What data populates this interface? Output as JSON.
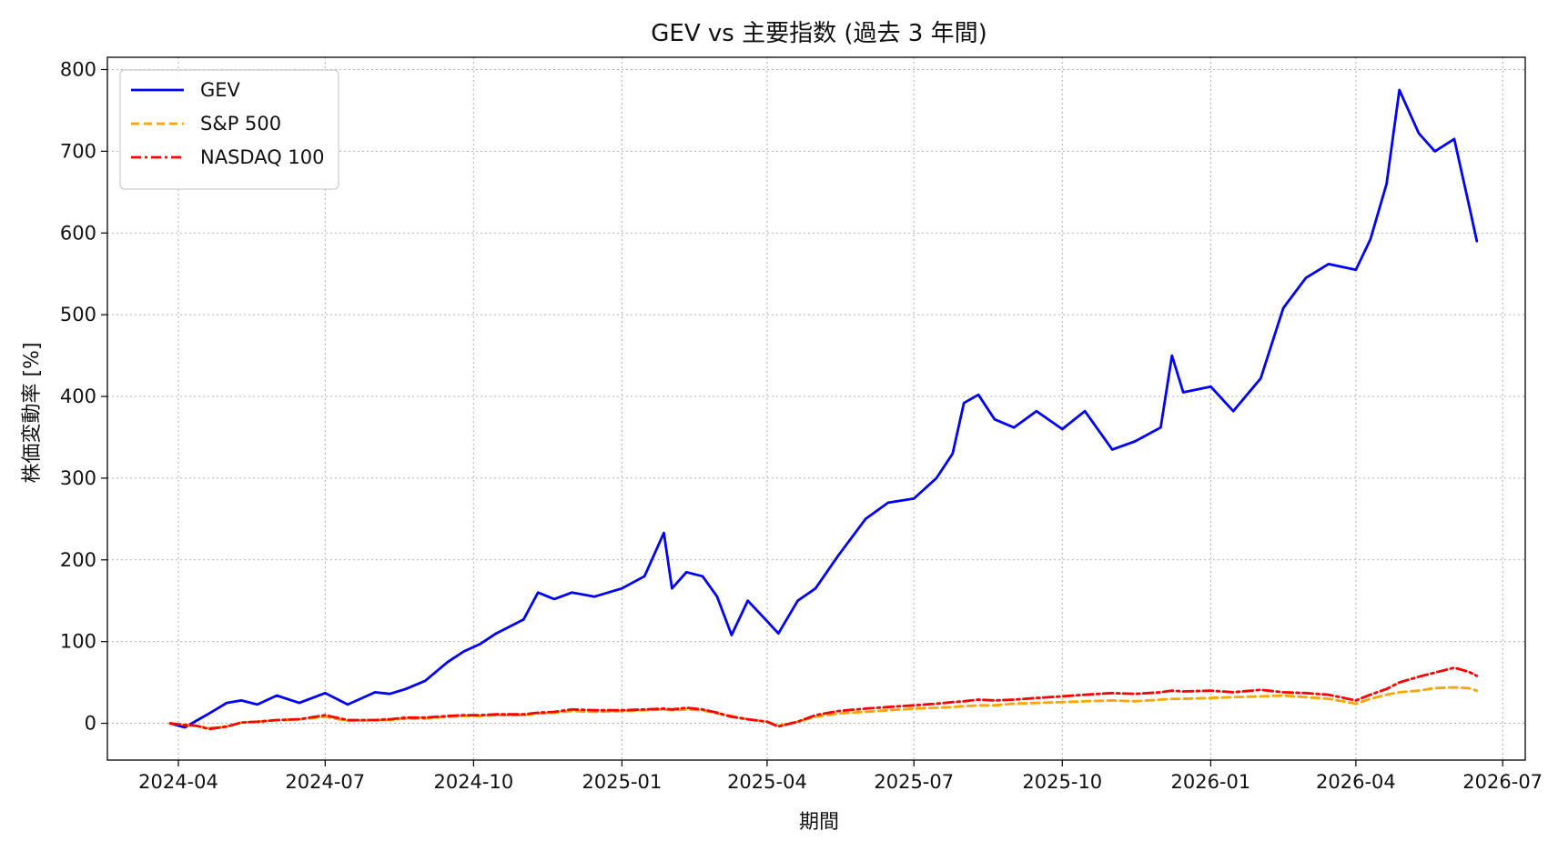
{
  "chart_data": {
    "type": "line",
    "title": "GEV vs 主要指数 (過去 3 年間)",
    "xlabel": "期間",
    "ylabel": "株価変動率 [%]",
    "x_tick_labels": [
      "2024-04",
      "2024-07",
      "2024-10",
      "2025-01",
      "2025-04",
      "2025-07",
      "2025-10",
      "2026-01",
      "2026-04",
      "2026-07"
    ],
    "ylim": [
      -45,
      815
    ],
    "xlim": [
      "2024-02-17",
      "2026-07-15"
    ],
    "y_ticks": [
      0,
      100,
      200,
      300,
      400,
      500,
      600,
      700,
      800
    ],
    "grid": true,
    "legend_position": "top-left",
    "x": [
      "2024-03-27",
      "2024-04-05",
      "2024-04-12",
      "2024-04-20",
      "2024-05-01",
      "2024-05-10",
      "2024-05-20",
      "2024-06-01",
      "2024-06-15",
      "2024-07-01",
      "2024-07-15",
      "2024-08-01",
      "2024-08-10",
      "2024-08-20",
      "2024-09-01",
      "2024-09-15",
      "2024-09-25",
      "2024-10-05",
      "2024-10-15",
      "2024-11-01",
      "2024-11-10",
      "2024-11-20",
      "2024-12-01",
      "2024-12-15",
      "2025-01-01",
      "2025-01-15",
      "2025-01-27",
      "2025-02-01",
      "2025-02-10",
      "2025-02-20",
      "2025-03-01",
      "2025-03-10",
      "2025-03-20",
      "2025-04-01",
      "2025-04-08",
      "2025-04-20",
      "2025-05-01",
      "2025-05-15",
      "2025-06-01",
      "2025-06-15",
      "2025-07-01",
      "2025-07-15",
      "2025-07-25",
      "2025-08-01",
      "2025-08-10",
      "2025-08-20",
      "2025-09-01",
      "2025-09-15",
      "2025-10-01",
      "2025-10-15",
      "2025-11-01",
      "2025-11-15",
      "2025-12-01",
      "2025-12-08",
      "2025-12-15",
      "2026-01-01",
      "2026-01-15",
      "2026-02-01",
      "2026-02-15",
      "2026-03-01",
      "2026-03-15",
      "2026-04-01",
      "2026-04-10",
      "2026-04-20",
      "2026-04-28",
      "2026-05-10",
      "2026-05-20",
      "2026-06-01",
      "2026-06-10",
      "2026-06-15"
    ],
    "series": [
      {
        "name": "GEV",
        "color": "#0000ff",
        "style": "solid",
        "values": [
          0,
          -5,
          3,
          12,
          25,
          28,
          23,
          34,
          25,
          37,
          23,
          38,
          36,
          42,
          52,
          75,
          88,
          97,
          110,
          127,
          160,
          152,
          160,
          155,
          165,
          180,
          233,
          165,
          185,
          180,
          155,
          108,
          150,
          125,
          110,
          150,
          165,
          205,
          250,
          270,
          275,
          300,
          330,
          392,
          402,
          372,
          362,
          382,
          360,
          382,
          335,
          345,
          362,
          450,
          405,
          412,
          382,
          422,
          508,
          545,
          562,
          555,
          592,
          660,
          775,
          722,
          700,
          715,
          635,
          590
        ]
      },
      {
        "name": "S&P 500",
        "color": "#ffa500",
        "style": "dashed",
        "values": [
          0,
          -2,
          -3,
          -6,
          -4,
          1,
          2,
          4,
          5,
          8,
          3,
          4,
          4,
          6,
          6,
          8,
          9,
          9,
          10,
          10,
          12,
          13,
          15,
          14,
          15,
          16,
          17,
          16,
          17,
          16,
          12,
          9,
          5,
          2,
          -3,
          2,
          8,
          12,
          14,
          16,
          18,
          19,
          20,
          21,
          22,
          22,
          24,
          25,
          26,
          27,
          28,
          27,
          29,
          30,
          30,
          31,
          32,
          33,
          34,
          32,
          30,
          24,
          30,
          35,
          38,
          40,
          43,
          44,
          43,
          40
        ]
      },
      {
        "name": "NASDAQ 100",
        "color": "#ff0000",
        "style": "dashdot",
        "values": [
          0,
          -2,
          -3,
          -7,
          -4,
          1,
          2,
          4,
          5,
          10,
          4,
          4,
          5,
          7,
          7,
          9,
          10,
          10,
          11,
          11,
          13,
          14,
          17,
          16,
          16,
          17,
          18,
          17,
          19,
          17,
          13,
          8,
          5,
          2,
          -4,
          2,
          10,
          15,
          18,
          20,
          22,
          24,
          26,
          27,
          29,
          28,
          29,
          31,
          33,
          35,
          37,
          36,
          38,
          40,
          39,
          40,
          38,
          41,
          38,
          37,
          35,
          28,
          35,
          42,
          50,
          57,
          62,
          68,
          63,
          58
        ]
      }
    ]
  }
}
